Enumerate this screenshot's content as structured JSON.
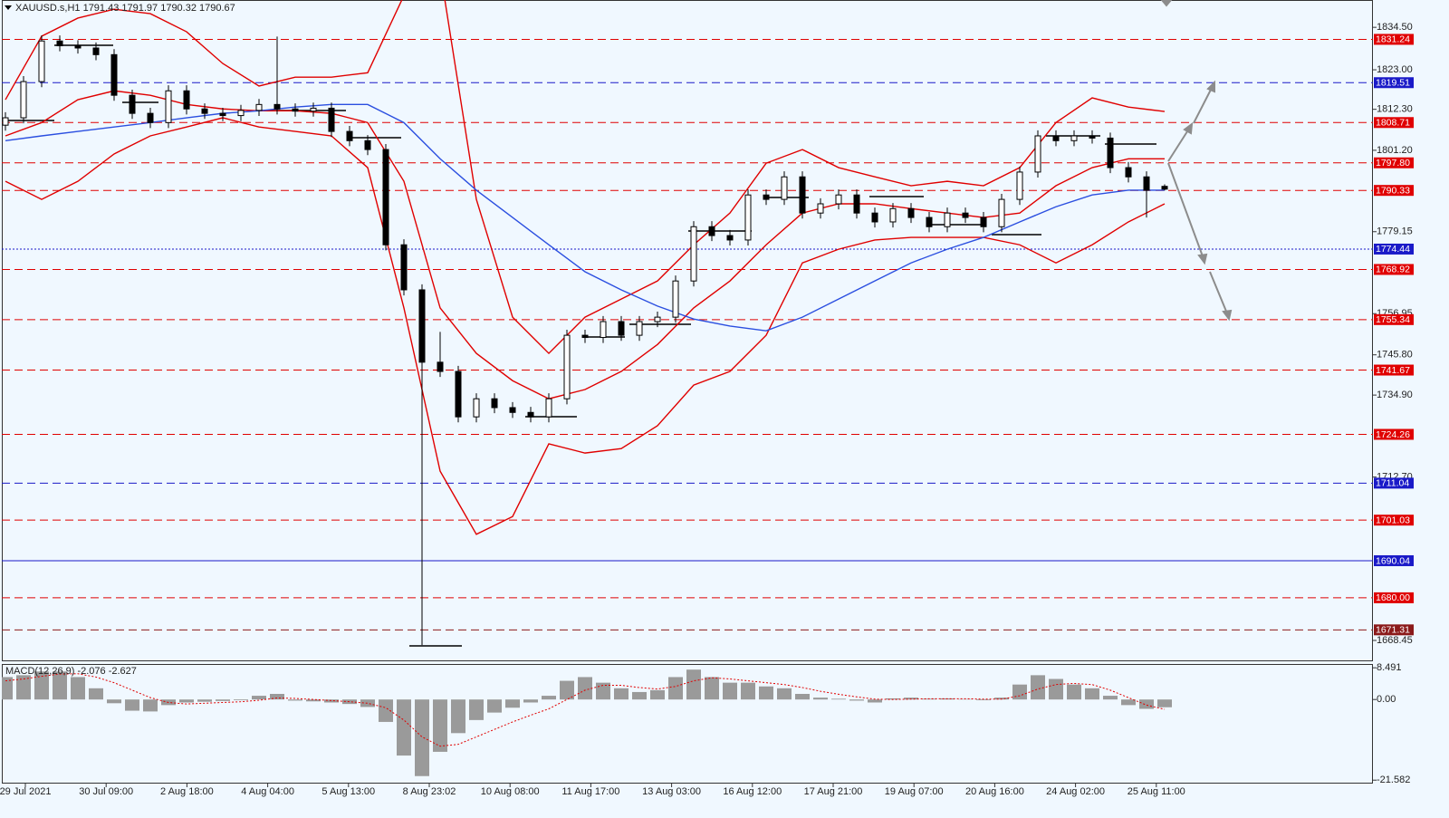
{
  "chart_data": [
    {
      "type": "candlestick",
      "title": "XAUUSD.s,H1  1791.43 1791.97 1790.32 1790.67",
      "color": "#000000",
      "ylim": [
        1662.8,
        1841.9
      ],
      "yticks": [
        {
          "value": 1834.5,
          "label": "1834.50"
        },
        {
          "value": 1823,
          "label": "1823.00"
        },
        {
          "value": 1812.3,
          "label": "1812.30"
        },
        {
          "value": 1801.2,
          "label": "1801.20"
        },
        1779.15,
        1756.95,
        {
          "value": 1745.8,
          "label": "1745.80"
        },
        {
          "value": 1734.9,
          "label": "1734.90"
        },
        {
          "value": 1712.7,
          "label": "1712.70"
        },
        1668.45
      ],
      "x_labels": [
        "29 Jul 2021",
        "30 Jul 09:00",
        "2 Aug 18:00",
        "4 Aug 04:00",
        "5 Aug 13:00",
        "8 Aug 23:02",
        "10 Aug 08:00",
        "11 Aug 17:00",
        "13 Aug 03:00",
        "16 Aug 12:00",
        "17 Aug 21:00",
        "19 Aug 07:00",
        "20 Aug 16:00",
        "24 Aug 02:00",
        "25 Aug 11:00"
      ],
      "open": [
        1808.0,
        1810.0,
        1819.8,
        1830.8,
        1829.5,
        1828.9,
        1827.1,
        1816.1,
        1811.2,
        1808.7,
        1817.3,
        1812.4,
        1811.2,
        1810.6,
        1812.0,
        1813.6,
        1812.4,
        1811.8,
        1812.6,
        1806.3,
        1803.8,
        1801.4,
        1775.6,
        1763.4,
        1743.8,
        1741.3,
        1729.0,
        1733.9,
        1731.5,
        1730.2,
        1729.0,
        1733.9,
        1751.1,
        1750.5,
        1754.8,
        1751.1,
        1754.8,
        1756.0,
        1765.8,
        1780.5,
        1778.1,
        1776.9,
        1789.1,
        1787.9,
        1794.0,
        1784.2,
        1786.7,
        1789.1,
        1784.2,
        1781.8,
        1785.4,
        1783.0,
        1780.5,
        1784.2,
        1783.0,
        1780.5,
        1787.9,
        1795.3,
        1805.1,
        1803.8,
        1805.1,
        1804.5,
        1796.5,
        1794.0,
        1791.43
      ],
      "high": [
        1811.5,
        1821.3,
        1832.3,
        1832.3,
        1831.0,
        1830.4,
        1828.6,
        1817.6,
        1812.7,
        1818.8,
        1818.8,
        1813.9,
        1812.7,
        1813.5,
        1815.1,
        1832.0,
        1813.9,
        1814.1,
        1814.1,
        1807.8,
        1805.3,
        1802.9,
        1777.1,
        1764.9,
        1752.0,
        1742.8,
        1735.4,
        1735.4,
        1733.0,
        1731.7,
        1735.4,
        1752.6,
        1752.6,
        1756.3,
        1756.3,
        1756.3,
        1757.5,
        1767.3,
        1782.0,
        1782.0,
        1779.6,
        1790.6,
        1790.6,
        1795.5,
        1795.5,
        1788.2,
        1790.6,
        1790.6,
        1785.7,
        1786.9,
        1786.9,
        1784.5,
        1785.7,
        1785.7,
        1784.5,
        1789.4,
        1796.8,
        1806.6,
        1806.6,
        1806.6,
        1806.6,
        1806.0,
        1798.0,
        1795.5,
        1791.97
      ],
      "low": [
        1806.5,
        1808.5,
        1818.3,
        1828.0,
        1827.4,
        1825.6,
        1814.6,
        1809.7,
        1807.2,
        1807.2,
        1810.9,
        1809.7,
        1809.1,
        1809.1,
        1810.5,
        1810.9,
        1810.3,
        1810.3,
        1804.8,
        1802.3,
        1799.9,
        1774.1,
        1761.9,
        1667.2,
        1739.8,
        1727.5,
        1727.5,
        1730.0,
        1728.7,
        1727.5,
        1727.5,
        1732.4,
        1749.0,
        1749.0,
        1749.6,
        1749.6,
        1753.3,
        1754.5,
        1764.3,
        1776.6,
        1775.4,
        1775.4,
        1786.4,
        1786.4,
        1782.7,
        1782.7,
        1785.2,
        1782.7,
        1780.3,
        1780.3,
        1781.5,
        1779.0,
        1779.0,
        1781.5,
        1779.0,
        1779.0,
        1786.4,
        1793.8,
        1802.3,
        1802.3,
        1803.0,
        1795.0,
        1792.5,
        1783.0,
        1790.32
      ],
      "close": [
        1810.0,
        1819.8,
        1830.8,
        1829.5,
        1828.9,
        1827.1,
        1816.1,
        1811.2,
        1808.7,
        1817.3,
        1812.4,
        1811.2,
        1810.6,
        1812.0,
        1813.6,
        1812.4,
        1811.8,
        1812.6,
        1806.3,
        1803.8,
        1801.4,
        1775.6,
        1763.4,
        1743.8,
        1741.3,
        1729.0,
        1733.9,
        1731.5,
        1730.2,
        1729.0,
        1733.9,
        1751.1,
        1750.5,
        1754.8,
        1751.1,
        1754.8,
        1756.0,
        1765.8,
        1780.5,
        1778.1,
        1776.9,
        1789.1,
        1787.9,
        1794.0,
        1784.2,
        1786.7,
        1789.1,
        1784.2,
        1781.8,
        1785.4,
        1783.0,
        1780.5,
        1784.2,
        1783.0,
        1780.5,
        1787.9,
        1795.3,
        1805.1,
        1803.8,
        1805.1,
        1804.5,
        1796.5,
        1794.0,
        1790.4,
        1790.67
      ],
      "overlay_x": [
        0,
        2,
        4,
        6,
        8,
        10,
        12,
        14,
        16,
        18,
        20,
        22,
        24,
        26,
        28,
        30,
        32,
        34,
        36,
        38,
        40,
        42,
        44,
        46,
        48,
        50,
        52,
        54,
        56,
        58,
        60,
        62,
        64
      ],
      "overlays": [
        {
          "color": "#e00000",
          "values": [
            1814.9,
            1832.1,
            1837.0,
            1839.4,
            1838.2,
            1833.3,
            1824.7,
            1818.6,
            1821.0,
            1821.0,
            1822.2,
            1843.1,
            1850.0,
            1787.9,
            1756.0,
            1746.2,
            1756.0,
            1760.9,
            1765.8,
            1775.6,
            1784.2,
            1797.7,
            1801.4,
            1796.5,
            1794.0,
            1791.6,
            1792.8,
            1791.6,
            1796.5,
            1808.7,
            1815.4,
            1812.9,
            1811.7
          ]
        },
        {
          "color": "#e00000",
          "values": [
            1805.1,
            1808.7,
            1814.9,
            1817.3,
            1816.1,
            1813.6,
            1812.4,
            1811.9,
            1811.9,
            1811.2,
            1808.7,
            1792.8,
            1758.5,
            1746.2,
            1738.8,
            1733.9,
            1736.4,
            1741.3,
            1748.6,
            1758.5,
            1765.8,
            1775.6,
            1784.2,
            1786.7,
            1786.7,
            1785.4,
            1784.2,
            1783.0,
            1784.2,
            1791.6,
            1796.5,
            1798.9,
            1798.9
          ]
        },
        {
          "color": "#e00000",
          "values": [
            1792.8,
            1787.9,
            1792.8,
            1800.2,
            1805.1,
            1807.5,
            1810.0,
            1807.5,
            1806.3,
            1805.1,
            1796.5,
            1758.5,
            1714.3,
            1697.2,
            1702.0,
            1721.7,
            1719.2,
            1720.4,
            1726.6,
            1737.6,
            1741.3,
            1751.1,
            1770.7,
            1774.4,
            1776.9,
            1777.6,
            1777.6,
            1777.6,
            1775.6,
            1770.7,
            1775.6,
            1781.8,
            1786.7
          ]
        },
        {
          "color": "#2b4fe0",
          "values": [
            1803.8,
            1805.1,
            1806.3,
            1807.5,
            1808.7,
            1810.0,
            1811.2,
            1811.9,
            1812.9,
            1813.6,
            1813.6,
            1808.7,
            1798.9,
            1790.4,
            1783.0,
            1775.6,
            1768.3,
            1763.4,
            1759.0,
            1755.5,
            1753.6,
            1752.3,
            1756.0,
            1760.9,
            1765.8,
            1770.7,
            1774.4,
            1777.6,
            1781.8,
            1785.9,
            1789.1,
            1790.4,
            1790.4
          ]
        }
      ],
      "levels": [
        {
          "value": 1831.24,
          "color": "#e00000",
          "style": "dashed"
        },
        {
          "value": 1819.51,
          "color": "#1a1ac8",
          "style": "dashed"
        },
        {
          "value": 1808.71,
          "color": "#e00000",
          "style": "dashed"
        },
        {
          "value": 1797.8,
          "label": "1797.80",
          "color": "#e00000",
          "style": "dashed"
        },
        {
          "value": 1790.33,
          "color": "#e00000",
          "style": "dashed"
        },
        {
          "value": 1774.44,
          "color": "#1a1ac8",
          "style": "dotted"
        },
        {
          "value": 1768.92,
          "color": "#e00000",
          "style": "dashed"
        },
        {
          "value": 1755.34,
          "color": "#e00000",
          "style": "dashed"
        },
        {
          "value": 1741.67,
          "color": "#e00000",
          "style": "dashed"
        },
        {
          "value": 1724.26,
          "color": "#e00000",
          "style": "dashed"
        },
        {
          "value": 1711.04,
          "color": "#1a1ac8",
          "style": "dashed"
        },
        {
          "value": 1701.03,
          "color": "#e00000",
          "style": "dashed"
        },
        {
          "value": 1690.04,
          "color": "#1a1ac8",
          "style": "solid"
        },
        {
          "value": 1680,
          "label": "1680.00",
          "color": "#e00000",
          "style": "dashed"
        },
        {
          "value": 1671.31,
          "color": "#8b1a1a",
          "style": "dashed"
        }
      ]
    },
    {
      "type": "bar",
      "title": "MACD(12,26,9) -2.076 -2.627",
      "color": "#9a9a9a",
      "ylim": [
        -22.5,
        9.5
      ],
      "yticks": [
        8.491,
        {
          "value": 0,
          "label": "0.00"
        },
        -21.582
      ],
      "values": [
        6.0,
        6.5,
        7.5,
        7.5,
        6.0,
        3.0,
        -1.0,
        -3.0,
        -3.2,
        -1.5,
        -0.8,
        -0.6,
        -0.4,
        -0.2,
        1.0,
        1.5,
        -0.3,
        -0.5,
        -0.8,
        -1.2,
        -2.0,
        -6.0,
        -15.0,
        -20.5,
        -14.0,
        -9.0,
        -5.5,
        -3.5,
        -2.2,
        -0.8,
        1.0,
        5.0,
        6.0,
        4.5,
        3.0,
        2.0,
        2.5,
        6.0,
        8.0,
        6.0,
        4.5,
        4.5,
        3.5,
        3.0,
        1.5,
        0.5,
        0.2,
        -0.3,
        -0.8,
        0.3,
        0.5,
        0.2,
        0.3,
        0.1,
        -0.2,
        0.5,
        4.0,
        6.5,
        5.5,
        4.0,
        3.0,
        1.0,
        -1.5,
        -2.5,
        -2.076
      ],
      "series": [
        {
          "color": "#e00000",
          "values": [
            5.0,
            5.5,
            6.2,
            6.8,
            6.9,
            6.0,
            4.5,
            2.5,
            0.5,
            -0.8,
            -1.2,
            -1.0,
            -0.8,
            -0.6,
            -0.2,
            0.4,
            0.3,
            0.0,
            -0.3,
            -0.6,
            -1.0,
            -2.2,
            -5.5,
            -10.0,
            -12.5,
            -12.0,
            -10.0,
            -8.0,
            -6.0,
            -4.2,
            -2.5,
            0.0,
            2.5,
            3.8,
            3.8,
            3.2,
            2.8,
            3.5,
            5.0,
            5.8,
            5.5,
            5.0,
            4.5,
            4.0,
            3.2,
            2.2,
            1.4,
            0.7,
            0.1,
            0.0,
            0.1,
            0.2,
            0.2,
            0.2,
            0.1,
            0.1,
            1.0,
            2.8,
            4.0,
            4.3,
            4.0,
            2.5,
            0.5,
            -1.5,
            -2.627
          ]
        }
      ]
    }
  ]
}
